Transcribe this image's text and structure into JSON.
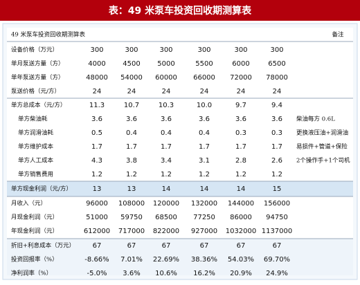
{
  "title": "表：49 米泵车投资回收期测算表",
  "table": {
    "header": [
      "49 米泵车投资回收期测算表",
      "备注"
    ],
    "rows": [
      [
        "设备价格（万元）",
        "300",
        "300",
        "300",
        "300",
        "300",
        "300"
      ],
      [
        "单月泵送方量（方）",
        "4000",
        "4500",
        "5000",
        "5500",
        "6000",
        "6500"
      ],
      [
        "单年泵送方量（方）",
        "48000",
        "54000",
        "60000",
        "66000",
        "72000",
        "78000"
      ],
      [
        "泵送价格（元/方）",
        "24",
        "24",
        "24",
        "24",
        "24",
        "24"
      ],
      [
        "单方总成本（元/方）",
        "11.3",
        "10.7",
        "10.3",
        "10.0",
        "9.7",
        "9.4"
      ],
      [
        "单方柴油耗",
        "3.6",
        "3.6",
        "3.6",
        "3.6",
        "3.6",
        "3.6",
        "柴油每方 0.6L"
      ],
      [
        "单方润滑油耗",
        "0.5",
        "0.4",
        "0.4",
        "0.4",
        "0.3",
        "0.3",
        "更换液压油+润滑油"
      ],
      [
        "单方维护成本",
        "1.7",
        "1.7",
        "1.7",
        "1.7",
        "1.7",
        "1.7",
        "易损件+管道+保险"
      ],
      [
        "单方人工成本",
        "4.3",
        "3.8",
        "3.4",
        "3.1",
        "2.8",
        "2.6",
        "2个操作手+1个司机"
      ],
      [
        "单方销售费用",
        "1.2",
        "1.2",
        "1.2",
        "1.2",
        "1.2",
        "1.2"
      ],
      [
        "单方现金利润（元/方）",
        "13",
        "13",
        "14",
        "14",
        "14",
        "15"
      ],
      [
        "月收入（元）",
        "96000",
        "108000",
        "120000",
        "132000",
        "144000",
        "156000"
      ],
      [
        "月现金利润（元）",
        "51000",
        "59750",
        "68500",
        "77250",
        "86000",
        "94750"
      ],
      [
        "年现金利润（元）",
        "612000",
        "717000",
        "822000",
        "927000",
        "1032000",
        "1137000"
      ],
      [
        "折旧+利息成本（万元）",
        "67",
        "67",
        "67",
        "67",
        "67",
        "67"
      ],
      [
        "投资回报率（%）",
        "-8.66%",
        "7.01%",
        "22.69%",
        "38.36%",
        "54.03%",
        "69.70%"
      ],
      [
        "净利润率（%）",
        "-5.0%",
        "3.6%",
        "10.6%",
        "16.2%",
        "20.9%",
        "24.9%"
      ]
    ]
  }
}
